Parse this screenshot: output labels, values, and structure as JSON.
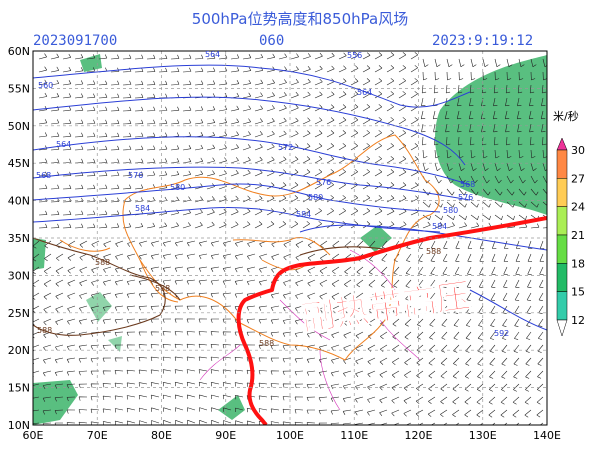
{
  "header": {
    "title": "500hPa位势高度和850hPa风场",
    "init_time": "2023091700",
    "forecast_hour": "060",
    "valid_time": "2023:9:19:12"
  },
  "axes": {
    "lon_labels": [
      "60E",
      "70E",
      "80E",
      "90E",
      "100E",
      "110E",
      "120E",
      "130E",
      "140E"
    ],
    "lat_labels": [
      "10N",
      "15N",
      "20N",
      "25N",
      "30N",
      "35N",
      "40N",
      "45N",
      "50N",
      "55N",
      "60N"
    ]
  },
  "contours": {
    "labels": [
      "560",
      "564",
      "568",
      "572",
      "576",
      "580",
      "584",
      "588",
      "592"
    ],
    "line_color": "#2b3fd6",
    "high_color": "#6b3a1e"
  },
  "colorbar": {
    "unit": "米/秒",
    "levels": [
      "12",
      "15",
      "18",
      "21",
      "24",
      "27",
      "30"
    ],
    "colors": [
      "#33ccaa",
      "#22bb66",
      "#66dd44",
      "#aaee55",
      "#ffcc55",
      "#ff8844",
      "#ee3399"
    ]
  },
  "annotation": {
    "text": "副热带高压",
    "color": "#ff1111"
  },
  "colors": {
    "border_orange": "#f08020",
    "border_magenta": "#cc00aa",
    "wind_barb": "#222222",
    "wind_fill": "#22aa55"
  }
}
